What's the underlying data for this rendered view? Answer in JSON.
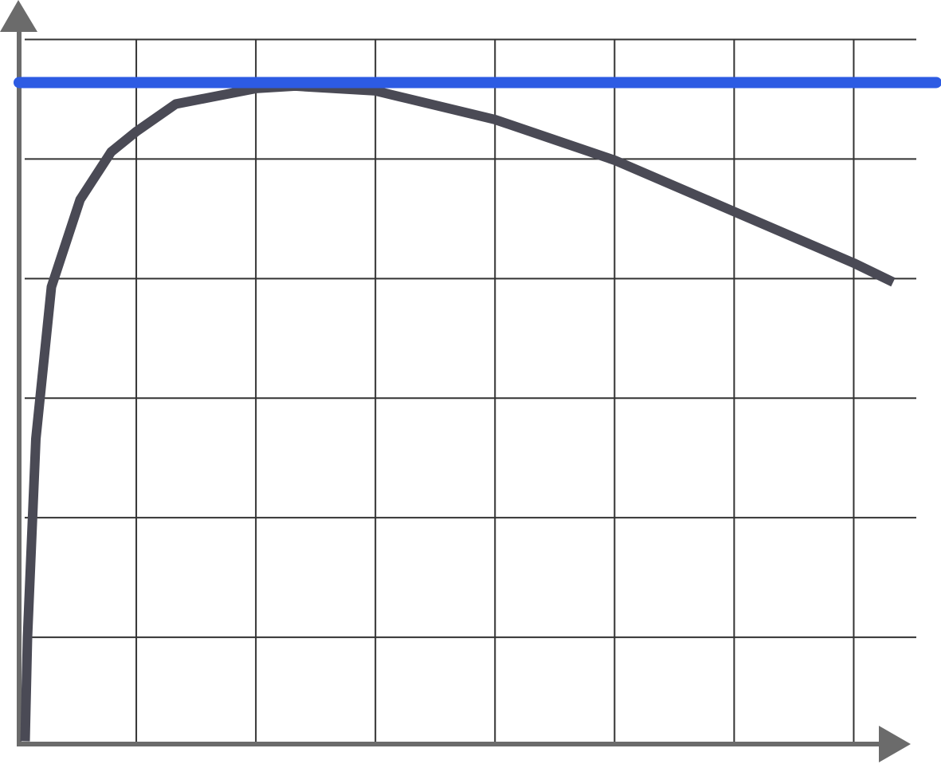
{
  "chart_data": {
    "type": "line",
    "xlim": [
      0,
      7.73
    ],
    "ylim": [
      0,
      6.33
    ],
    "xticks": [
      1,
      2,
      3,
      4,
      5,
      6,
      7
    ],
    "yticks": [
      1,
      2,
      3,
      4,
      5,
      6
    ],
    "grid": true,
    "series": [
      {
        "color": "#4a4a55",
        "x": [
          0.07,
          0.09,
          0.16,
          0.29,
          0.53,
          0.79,
          1.0,
          1.33,
          2.0,
          2.33,
          3.0,
          4.0,
          5.0,
          6.0,
          7.0,
          7.33
        ],
        "values": [
          0.13,
          1.0,
          2.66,
          3.93,
          4.66,
          5.06,
          5.23,
          5.46,
          5.59,
          5.61,
          5.57,
          5.33,
          4.99,
          4.56,
          4.13,
          3.97
        ]
      },
      {
        "color": "#2d5be3",
        "x": [
          0.02,
          7.69
        ],
        "values": [
          5.64,
          5.64
        ]
      }
    ]
  }
}
